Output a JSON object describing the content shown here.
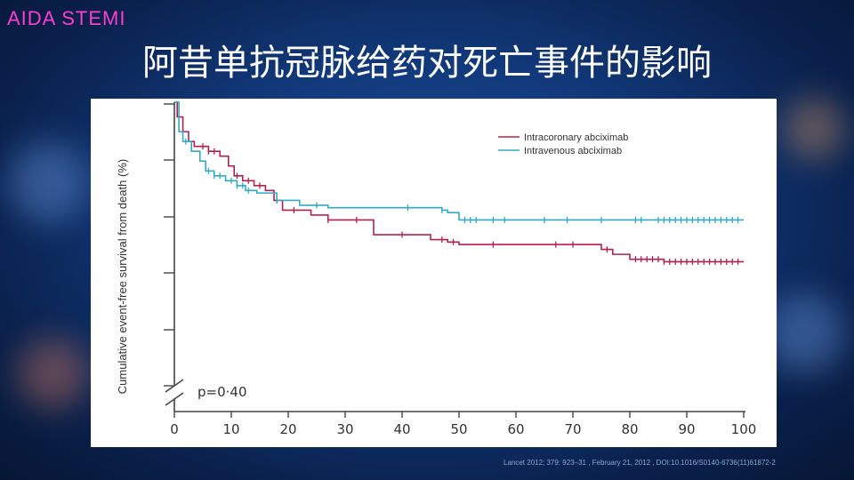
{
  "slide": {
    "brand": "AIDA STEMI",
    "title": "阿昔单抗冠脉给药对死亡事件的影响",
    "citation": "Lancet 2012; 379: 923–31 ,  February  21, 2012 ,  DOI:10.1016/S0140-6736(11)61872-2"
  },
  "colors": {
    "intracoronary": "#b0224e",
    "intravenous": "#33a9c4",
    "axis": "#444444",
    "brand": "#ff3fd0"
  },
  "chart_data": {
    "type": "line",
    "subtype": "kaplan-meier step",
    "title": "",
    "xlabel": "",
    "ylabel": "Cumulative event-free survival from death (%)",
    "xlim": [
      0,
      100
    ],
    "ylim": [
      0,
      100
    ],
    "x_ticks": [
      0,
      10,
      20,
      30,
      40,
      50,
      60,
      70,
      80,
      90,
      100
    ],
    "annotation": "p=0·40",
    "legend_position": "top-right",
    "series": [
      {
        "name": "Intracoronary abciximab",
        "color_key": "intracoronary",
        "steps": [
          [
            0,
            100
          ],
          [
            0.5,
            97
          ],
          [
            1.5,
            94
          ],
          [
            2.5,
            92
          ],
          [
            3.5,
            91
          ],
          [
            6,
            90
          ],
          [
            8,
            89
          ],
          [
            9.5,
            87
          ],
          [
            10.5,
            85
          ],
          [
            12,
            84
          ],
          [
            14,
            83
          ],
          [
            16,
            82
          ],
          [
            17.5,
            80
          ],
          [
            19,
            78
          ],
          [
            24,
            77
          ],
          [
            27,
            76
          ],
          [
            35,
            73
          ],
          [
            45,
            72
          ],
          [
            48,
            71.5
          ],
          [
            50,
            71
          ],
          [
            69,
            71
          ],
          [
            75,
            70
          ],
          [
            77,
            69
          ],
          [
            80,
            68
          ],
          [
            86,
            67.5
          ],
          [
            100,
            67.5
          ]
        ],
        "censored": [
          5,
          6,
          7,
          11,
          13,
          15,
          18,
          21,
          27,
          32,
          40,
          47,
          49,
          56,
          67,
          70,
          76,
          81,
          82,
          83,
          84,
          85,
          86,
          87,
          88,
          89,
          90,
          91,
          92,
          93,
          94,
          95,
          96,
          97,
          98,
          99
        ]
      },
      {
        "name": "Intravenous abciximab",
        "color_key": "intravenous",
        "steps": [
          [
            0,
            100
          ],
          [
            0.8,
            94
          ],
          [
            1.5,
            92
          ],
          [
            3,
            90
          ],
          [
            4.5,
            88
          ],
          [
            5.5,
            86
          ],
          [
            7,
            85
          ],
          [
            9,
            84
          ],
          [
            11,
            83
          ],
          [
            12.5,
            82
          ],
          [
            14.5,
            81.5
          ],
          [
            18,
            80
          ],
          [
            22,
            79
          ],
          [
            27,
            78.5
          ],
          [
            47,
            78
          ],
          [
            48,
            77.5
          ],
          [
            50,
            76
          ],
          [
            100,
            76
          ]
        ],
        "censored": [
          2,
          6,
          7,
          8,
          10,
          11,
          12,
          13,
          18,
          25,
          41,
          47,
          51,
          52,
          53,
          56,
          58,
          65,
          69,
          75,
          81,
          82,
          85,
          86,
          87,
          88,
          89,
          90,
          91,
          92,
          93,
          94,
          95,
          96,
          97,
          98,
          99
        ]
      }
    ]
  }
}
